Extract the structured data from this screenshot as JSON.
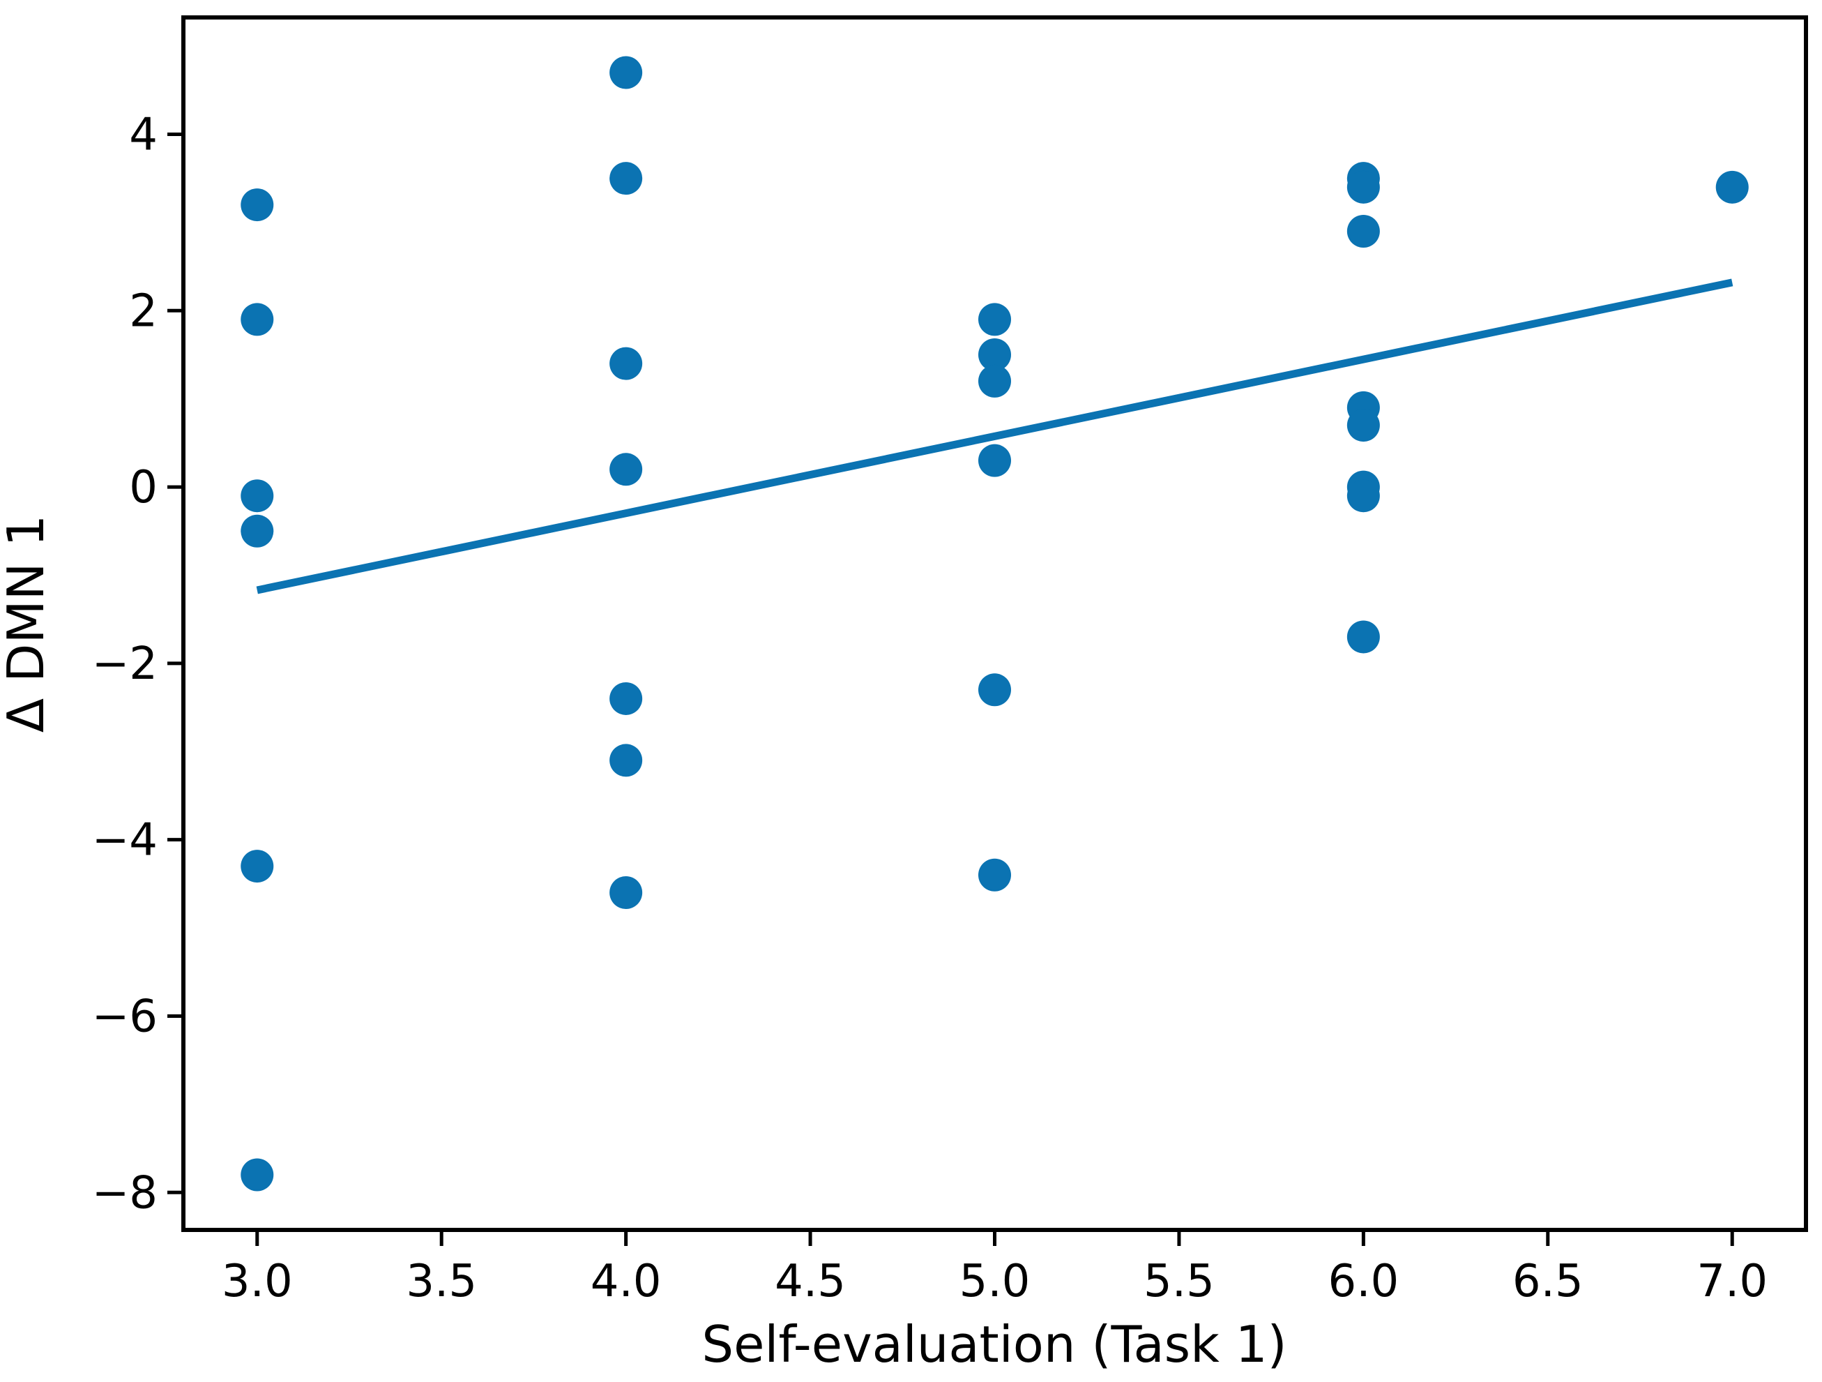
{
  "figure": {
    "background": "#ffffff",
    "axis_color": "#000000"
  },
  "chart_data": {
    "type": "scatter",
    "title": "",
    "xlabel": "Self-evaluation (Task 1)",
    "ylabel": "Δ DMN 1",
    "xlim": [
      2.8,
      7.2
    ],
    "ylim": [
      -8.425,
      5.325
    ],
    "xticks": [
      3.0,
      3.5,
      4.0,
      4.5,
      5.0,
      5.5,
      6.0,
      6.5,
      7.0
    ],
    "xtick_labels": [
      "3.0",
      "3.5",
      "4.0",
      "4.5",
      "5.0",
      "5.5",
      "6.0",
      "6.5",
      "7.0"
    ],
    "yticks": [
      4,
      2,
      0,
      -2,
      -4,
      -6,
      -8
    ],
    "ytick_labels": [
      "4",
      "2",
      "0",
      "−2",
      "−4",
      "−6",
      "−8"
    ],
    "grid": false,
    "legend": null,
    "marker_color": "#0b73b2",
    "line_color": "#0b73b2",
    "series": [
      {
        "name": "scatter-points",
        "type": "scatter",
        "points": [
          [
            3.0,
            3.2
          ],
          [
            3.0,
            1.9
          ],
          [
            3.0,
            -0.1
          ],
          [
            3.0,
            -0.5
          ],
          [
            3.0,
            -4.3
          ],
          [
            3.0,
            -7.8
          ],
          [
            4.0,
            4.7
          ],
          [
            4.0,
            3.5
          ],
          [
            4.0,
            1.4
          ],
          [
            4.0,
            0.2
          ],
          [
            4.0,
            -2.4
          ],
          [
            4.0,
            -3.1
          ],
          [
            4.0,
            -4.6
          ],
          [
            5.0,
            1.9
          ],
          [
            5.0,
            1.5
          ],
          [
            5.0,
            1.2
          ],
          [
            5.0,
            0.3
          ],
          [
            5.0,
            -2.3
          ],
          [
            5.0,
            -4.4
          ],
          [
            6.0,
            3.5
          ],
          [
            6.0,
            3.4
          ],
          [
            6.0,
            2.9
          ],
          [
            6.0,
            0.9
          ],
          [
            6.0,
            0.7
          ],
          [
            6.0,
            0.0
          ],
          [
            6.0,
            -0.1
          ],
          [
            6.0,
            -1.7
          ],
          [
            7.0,
            3.4
          ]
        ]
      },
      {
        "name": "regression-line",
        "type": "line",
        "x": [
          3.0,
          7.0
        ],
        "y": [
          -1.17,
          2.32
        ]
      }
    ]
  }
}
